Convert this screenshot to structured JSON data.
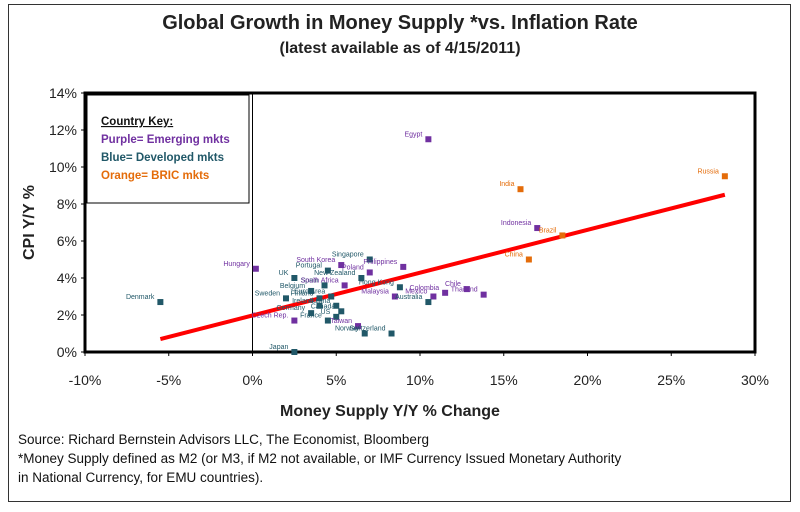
{
  "chart_data": {
    "type": "scatter",
    "title": "Global Growth in Money Supply *vs. Inflation Rate",
    "subtitle": "(latest available as of 4/15/2011)",
    "xlabel": "Money Supply Y/Y % Change",
    "ylabel": "CPI Y/Y %",
    "xlim": [
      -10,
      30
    ],
    "ylim": [
      0,
      14
    ],
    "x_ticks": [
      -10,
      -5,
      0,
      5,
      10,
      15,
      20,
      25,
      30
    ],
    "x_tick_labels": [
      "-10%",
      "-5%",
      "0%",
      "5%",
      "10%",
      "15%",
      "20%",
      "25%",
      "30%"
    ],
    "y_ticks": [
      0,
      2,
      4,
      6,
      8,
      10,
      12,
      14
    ],
    "y_tick_labels": [
      "0%",
      "2%",
      "4%",
      "6%",
      "8%",
      "10%",
      "12%",
      "14%"
    ],
    "grid": false,
    "legend": {
      "title": "Country Key:",
      "entries": [
        {
          "label": "Purple= Emerging mkts",
          "group": "emerging"
        },
        {
          "label": "Blue= Developed mkts",
          "group": "developed"
        },
        {
          "label": "Orange= BRIC mkts",
          "group": "bric"
        }
      ]
    },
    "colors": {
      "emerging": "#7030a0",
      "developed": "#215868",
      "bric": "#e46c0a",
      "trend": "#ff0000"
    },
    "points": [
      {
        "name": "Egypt",
        "x": 10.5,
        "y": 11.5,
        "group": "emerging"
      },
      {
        "name": "India",
        "x": 16.0,
        "y": 8.8,
        "group": "bric"
      },
      {
        "name": "Russia",
        "x": 28.2,
        "y": 9.5,
        "group": "bric"
      },
      {
        "name": "Indonesia",
        "x": 17.0,
        "y": 6.7,
        "group": "emerging"
      },
      {
        "name": "Brazil",
        "x": 18.5,
        "y": 6.3,
        "group": "bric"
      },
      {
        "name": "China",
        "x": 16.5,
        "y": 5.0,
        "group": "bric"
      },
      {
        "name": "Singapore",
        "x": 7.0,
        "y": 5.0,
        "group": "developed"
      },
      {
        "name": "South Korea",
        "x": 5.3,
        "y": 4.7,
        "group": "emerging"
      },
      {
        "name": "Hungary",
        "x": 0.2,
        "y": 4.5,
        "group": "emerging"
      },
      {
        "name": "Portugal",
        "x": 4.5,
        "y": 4.4,
        "group": "developed"
      },
      {
        "name": "Philippines",
        "x": 9.0,
        "y": 4.6,
        "group": "emerging"
      },
      {
        "name": "Poland",
        "x": 7.0,
        "y": 4.3,
        "group": "emerging"
      },
      {
        "name": "UK",
        "x": 2.5,
        "y": 4.0,
        "group": "developed"
      },
      {
        "name": "Spain",
        "x": 4.3,
        "y": 3.6,
        "group": "developed"
      },
      {
        "name": "New Zealand",
        "x": 6.5,
        "y": 4.0,
        "group": "developed"
      },
      {
        "name": "Belgium",
        "x": 3.5,
        "y": 3.3,
        "group": "developed"
      },
      {
        "name": "South Africa",
        "x": 5.5,
        "y": 3.6,
        "group": "emerging"
      },
      {
        "name": "Hong Kong",
        "x": 8.8,
        "y": 3.5,
        "group": "developed"
      },
      {
        "name": "Colombia",
        "x": 11.5,
        "y": 3.2,
        "group": "emerging"
      },
      {
        "name": "Chile",
        "x": 12.8,
        "y": 3.4,
        "group": "emerging"
      },
      {
        "name": "Euro Area",
        "x": 4.7,
        "y": 3.0,
        "group": "developed"
      },
      {
        "name": "Finland",
        "x": 4.0,
        "y": 2.9,
        "group": "developed"
      },
      {
        "name": "Malaysia",
        "x": 8.5,
        "y": 3.0,
        "group": "emerging"
      },
      {
        "name": "Mexico",
        "x": 10.8,
        "y": 3.0,
        "group": "emerging"
      },
      {
        "name": "Thailand",
        "x": 13.8,
        "y": 3.1,
        "group": "emerging"
      },
      {
        "name": "Australia",
        "x": 10.5,
        "y": 2.7,
        "group": "developed"
      },
      {
        "name": "Denmark",
        "x": -5.5,
        "y": 2.7,
        "group": "developed"
      },
      {
        "name": "Sweden",
        "x": 2.0,
        "y": 2.9,
        "group": "developed"
      },
      {
        "name": "Austria",
        "x": 5.0,
        "y": 2.5,
        "group": "developed"
      },
      {
        "name": "Ireland",
        "x": 4.0,
        "y": 2.5,
        "group": "developed"
      },
      {
        "name": "Canada",
        "x": 5.3,
        "y": 2.2,
        "group": "developed"
      },
      {
        "name": "Germany",
        "x": 3.5,
        "y": 2.1,
        "group": "developed"
      },
      {
        "name": "US",
        "x": 5.0,
        "y": 1.9,
        "group": "developed"
      },
      {
        "name": "Czech Rep.",
        "x": 2.5,
        "y": 1.7,
        "group": "emerging"
      },
      {
        "name": "France",
        "x": 4.5,
        "y": 1.7,
        "group": "developed"
      },
      {
        "name": "Taiwan",
        "x": 6.3,
        "y": 1.4,
        "group": "emerging"
      },
      {
        "name": "Norway",
        "x": 6.7,
        "y": 1.0,
        "group": "developed"
      },
      {
        "name": "Switzerland",
        "x": 8.3,
        "y": 1.0,
        "group": "developed"
      },
      {
        "name": "Japan",
        "x": 2.5,
        "y": 0.0,
        "group": "developed"
      }
    ],
    "trendline": {
      "x": [
        -5.5,
        28.2
      ],
      "y": [
        0.7,
        8.5
      ]
    }
  },
  "source_lines": [
    "Source: Richard Bernstein Advisors LLC, The Economist, Bloomberg",
    "*Money Supply defined as M2 (or M3, if M2 not available, or IMF Currency Issued Monetary Authority",
    "in National Currency, for EMU countries)."
  ]
}
